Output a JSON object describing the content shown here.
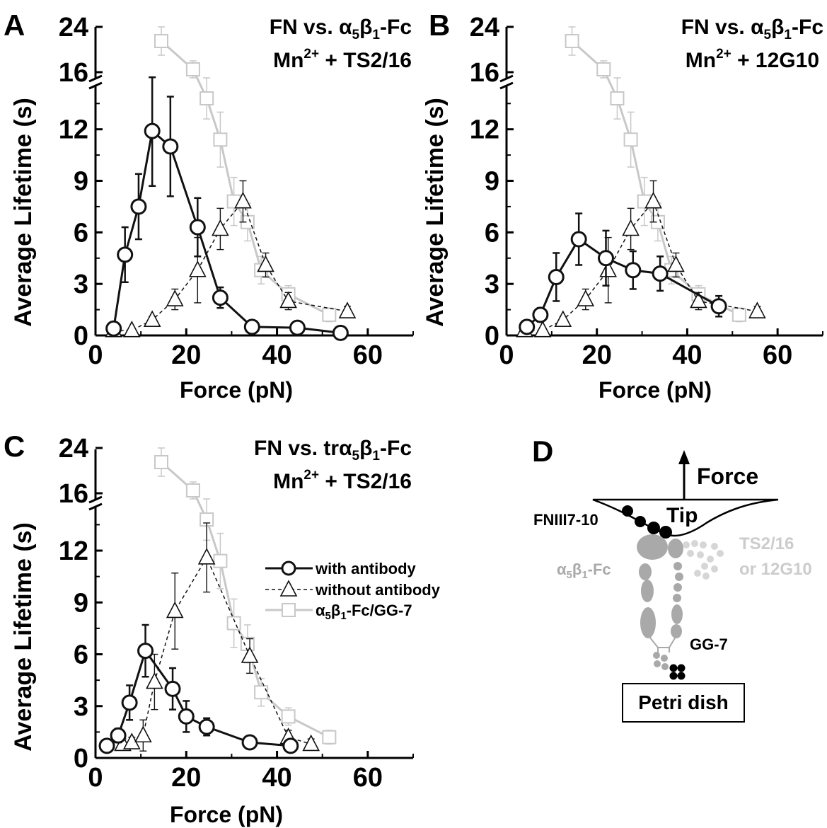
{
  "figure": {
    "xlabel": "Force (pN)",
    "ylabel": "Average Lifetime (s)",
    "x_ticks": [
      0,
      20,
      40,
      60
    ],
    "y_ticks_lower": [
      0,
      3,
      6,
      9,
      12
    ],
    "y_ticks_upper": [
      16,
      24
    ],
    "xlim": [
      0,
      70
    ],
    "ylim_lower": [
      0,
      14.5
    ],
    "ylim_upper": [
      15,
      26
    ],
    "axis_break": "y between 14.5 and 16",
    "legend": {
      "with": "with antibody",
      "without": "without antibody",
      "ref": "α5β1-Fc/GG-7",
      "placement": "panel C, right-center"
    },
    "series_colors": {
      "with": "#111111",
      "without": "#111111",
      "ref": "#c8c8c8"
    }
  },
  "chart_data": [
    {
      "panel": "A",
      "type": "line",
      "title_line1": "FN vs. α5β1-Fc",
      "title_line2": "Mn2+ + TS2/16",
      "series": [
        {
          "name": "with antibody",
          "marker": "circle",
          "line": "solid",
          "x": [
            4,
            6.5,
            9.5,
            12.5,
            16.5,
            22.5,
            27.5,
            34.5,
            44.5,
            54
          ],
          "y": [
            0.4,
            4.7,
            7.5,
            11.9,
            11.0,
            6.3,
            2.2,
            0.5,
            0.45,
            0.15
          ],
          "err": [
            0.2,
            1.6,
            1.9,
            3.2,
            2.9,
            1.7,
            0.6,
            0.15,
            0.2,
            0.1
          ]
        },
        {
          "name": "without antibody",
          "marker": "triangle",
          "line": "dashed",
          "x": [
            4,
            8,
            12.5,
            17.5,
            22.5,
            27.5,
            32.5,
            37.5,
            42.5,
            55.5
          ],
          "y": [
            0.3,
            0.3,
            0.9,
            2.1,
            3.8,
            6.2,
            7.8,
            4.1,
            2.0,
            1.4
          ],
          "err": [
            0.1,
            0.1,
            0.2,
            0.6,
            1.9,
            1.2,
            1.2,
            0.7,
            0.5,
            0.3
          ]
        },
        {
          "name": "α5β1-Fc/GG-7",
          "marker": "square",
          "line": "solid-gray",
          "x": [
            14.5,
            21.5,
            24.5,
            27.5,
            30.5,
            33.5,
            36.5,
            42.5,
            51.5
          ],
          "y": [
            21.5,
            16.5,
            13.8,
            11.4,
            7.8,
            6.6,
            3.8,
            2.4,
            1.2
          ],
          "err": [
            2.5,
            1.5,
            1.2,
            1.6,
            1.4,
            1.1,
            0.8,
            0.5,
            0.4
          ]
        }
      ]
    },
    {
      "panel": "B",
      "type": "line",
      "title_line1": "FN vs. α5β1-Fc",
      "title_line2": "Mn2+ + 12G10",
      "series": [
        {
          "name": "with antibody",
          "marker": "circle",
          "line": "solid",
          "x": [
            4.5,
            7.5,
            11,
            16,
            22,
            28,
            34,
            47
          ],
          "y": [
            0.5,
            1.2,
            3.4,
            5.6,
            4.5,
            3.8,
            3.6,
            1.7
          ],
          "err": [
            0.3,
            0.4,
            1.4,
            1.5,
            1.6,
            1.1,
            1.0,
            0.6
          ]
        },
        {
          "name": "without antibody",
          "marker": "triangle",
          "line": "dashed",
          "x": [
            4,
            8,
            12.5,
            17.5,
            22.5,
            27.5,
            32.5,
            37.5,
            42.5,
            55.5
          ],
          "y": [
            0.3,
            0.3,
            0.9,
            2.1,
            3.8,
            6.2,
            7.8,
            4.1,
            2.0,
            1.4
          ],
          "err": [
            0.1,
            0.1,
            0.2,
            0.6,
            1.9,
            1.2,
            1.2,
            0.7,
            0.5,
            0.3
          ]
        },
        {
          "name": "α5β1-Fc/GG-7",
          "marker": "square",
          "line": "solid-gray",
          "x": [
            14.5,
            21.5,
            24.5,
            27.5,
            30.5,
            33.5,
            36.5,
            42.5,
            51.5
          ],
          "y": [
            21.5,
            16.5,
            13.8,
            11.4,
            7.8,
            6.6,
            3.8,
            2.4,
            1.2
          ],
          "err": [
            2.5,
            1.5,
            1.2,
            1.6,
            1.4,
            1.1,
            0.8,
            0.5,
            0.4
          ]
        }
      ]
    },
    {
      "panel": "C",
      "type": "line",
      "title_line1": "FN vs. trα5β1-Fc",
      "title_line2": "Mn2+ + TS2/16",
      "series": [
        {
          "name": "with antibody",
          "marker": "circle",
          "line": "solid",
          "x": [
            2.5,
            5,
            7.5,
            11,
            17,
            20,
            24.5,
            34,
            43
          ],
          "y": [
            0.7,
            1.3,
            3.2,
            6.2,
            4.0,
            2.4,
            1.8,
            0.9,
            0.7
          ],
          "err": [
            0.3,
            0.4,
            1.0,
            1.5,
            1.2,
            0.9,
            0.5,
            0.3,
            0.3
          ]
        },
        {
          "name": "without antibody",
          "marker": "triangle",
          "line": "dashed",
          "x": [
            6,
            8,
            10.5,
            13,
            17.5,
            24.5,
            34,
            42.5,
            47.5
          ],
          "y": [
            0.8,
            0.9,
            1.3,
            4.4,
            8.5,
            11.6,
            5.9,
            1.2,
            0.8
          ],
          "err": [
            0.3,
            0.3,
            0.9,
            1.6,
            2.2,
            2.0,
            1.0,
            0.4,
            0.3
          ]
        },
        {
          "name": "α5β1-Fc/GG-7",
          "marker": "square",
          "line": "solid-gray",
          "x": [
            14.5,
            21.5,
            24.5,
            27.5,
            30.5,
            33.5,
            36.5,
            42.5,
            51.5
          ],
          "y": [
            21.5,
            16.5,
            13.8,
            11.4,
            7.8,
            6.6,
            3.8,
            2.4,
            1.2
          ],
          "err": [
            2.5,
            1.5,
            1.2,
            1.6,
            1.4,
            1.1,
            0.8,
            0.5,
            0.4
          ]
        }
      ]
    }
  ],
  "diagram": {
    "panel": "D",
    "force_label": "Force",
    "tip_label": "Tip",
    "fn_label": "FNIII7-10",
    "integrin_label": "α5β1-Fc",
    "antibody_label_1": "TS2/16",
    "antibody_label_2": "or 12G10",
    "gg7_label": "GG-7",
    "dish_label": "Petri dish"
  }
}
